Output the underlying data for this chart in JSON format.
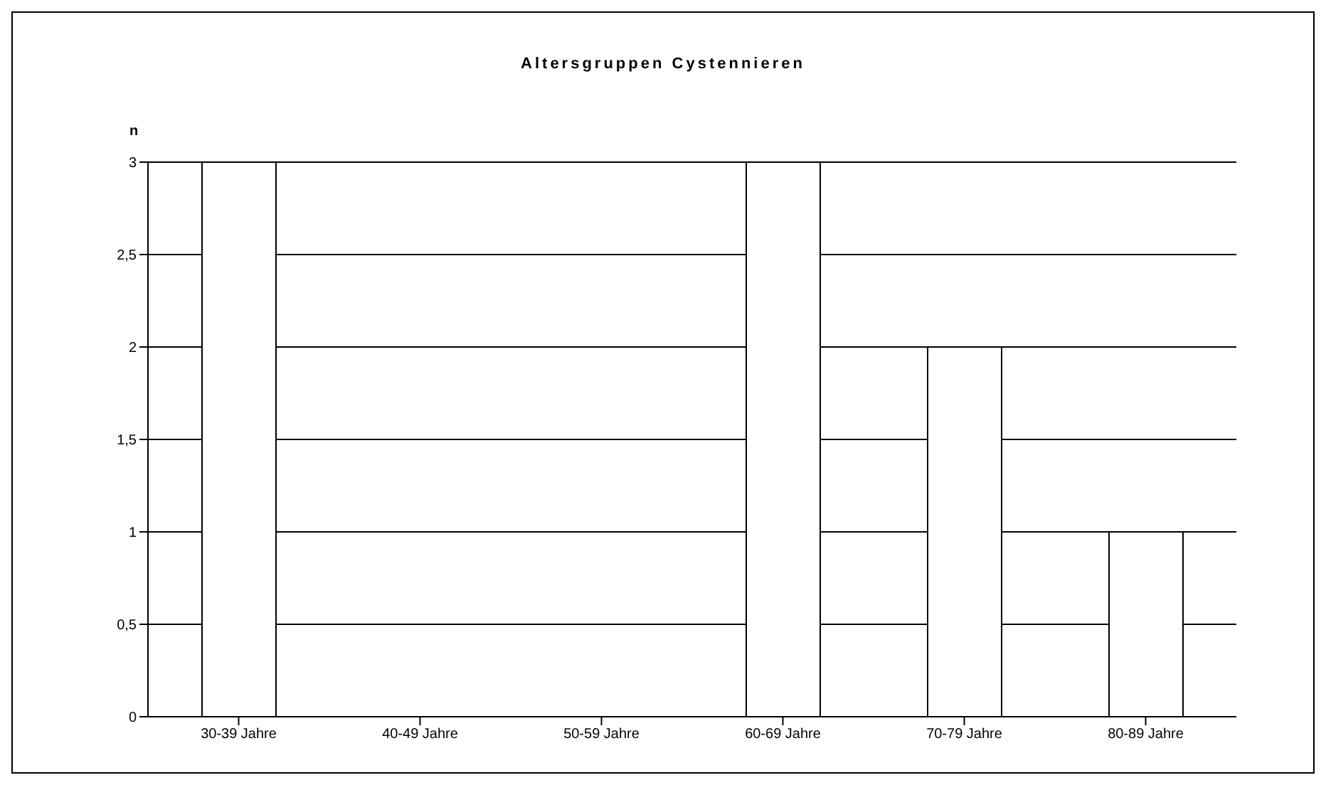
{
  "chart_data": {
    "type": "bar",
    "title": "Altersgruppen Cystennieren",
    "ylabel": "n",
    "categories": [
      "30-39 Jahre",
      "40-49 Jahre",
      "50-59 Jahre",
      "60-69 Jahre",
      "70-79 Jahre",
      "80-89 Jahre"
    ],
    "values": [
      3,
      0,
      0,
      3,
      2,
      1
    ],
    "color": "#ffffff",
    "ylim": [
      0,
      3
    ],
    "yticks": [
      0,
      {
        "value": 0.5,
        "label": "0,5"
      },
      1,
      {
        "value": 1.5,
        "label": "1,5"
      },
      2,
      {
        "value": 2.5,
        "label": "2,5"
      },
      3
    ],
    "grid": "y"
  }
}
